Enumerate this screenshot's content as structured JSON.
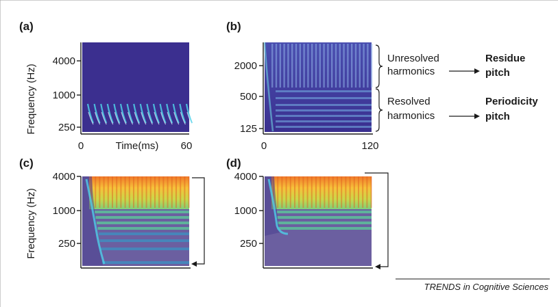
{
  "figure": {
    "credit": "TRENDS in Cognitive Sciences",
    "colors": {
      "background_dark": "#3b2f8f",
      "background_grey": "#6b5fa0",
      "harmonic_cyan": "#4fd0e8",
      "high_freq_orange": "#f08a2a",
      "high_freq_yellow": "#f5d73a"
    }
  },
  "panels": {
    "a": {
      "label": "(a)",
      "ylabel": "Frequency (Hz)",
      "xlabel": "Time(ms)",
      "yticks": [
        "4000",
        "1000",
        "250"
      ],
      "xticks": [
        "0",
        "60"
      ]
    },
    "b": {
      "label": "(b)",
      "yticks": [
        "2000",
        "500",
        "125"
      ],
      "xticks": [
        "0",
        "120"
      ],
      "annotations": {
        "unresolved": [
          "Unresolved",
          "harmonics"
        ],
        "residue": [
          "Residue",
          "pitch"
        ],
        "resolved": [
          "Resolved",
          "harmonics"
        ],
        "periodicity": [
          "Periodicity",
          "pitch"
        ]
      }
    },
    "c": {
      "label": "(c)",
      "ylabel": "Frequency (Hz)",
      "yticks": [
        "4000",
        "1000",
        "250"
      ]
    },
    "d": {
      "label": "(d)",
      "yticks": [
        "4000",
        "1000",
        "250"
      ]
    }
  }
}
